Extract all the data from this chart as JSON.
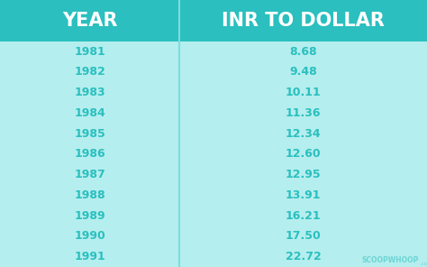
{
  "years": [
    "1981",
    "1982",
    "1983",
    "1984",
    "1985",
    "1986",
    "1987",
    "1988",
    "1989",
    "1990",
    "1991"
  ],
  "rates": [
    "8.68",
    "9.48",
    "10.11",
    "11.36",
    "12.34",
    "12.60",
    "12.95",
    "13.91",
    "16.21",
    "17.50",
    "22.72"
  ],
  "header_left": "YEAR",
  "header_right": "INR TO DOLLAR",
  "bg_color": "#b5eeee",
  "header_bg_color": "#2bbfbf",
  "text_color": "#2bbfbf",
  "header_text_color": "#ffffff",
  "divider_color": "#7ddcdc",
  "watermark_main": "SCOOPWHOOP",
  "watermark_suffix": ".com",
  "col_divider": 0.42
}
